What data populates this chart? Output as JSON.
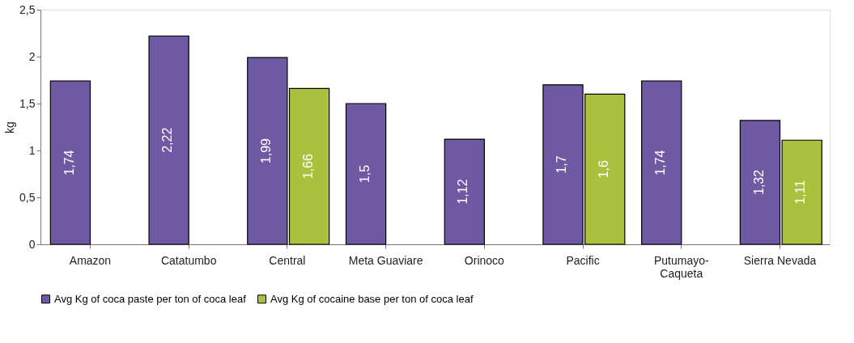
{
  "chart_data": {
    "type": "bar",
    "ylabel": "kg",
    "categories": [
      "Amazon",
      "Catatumbo",
      "Central",
      "Meta Guaviare",
      "Orinoco",
      "Pacific",
      "Putumayo-Caqueta",
      "Sierra Nevada"
    ],
    "series": [
      {
        "name": "Avg Kg of coca paste per ton of coca leaf",
        "color": "#7059a3",
        "values": [
          1.74,
          2.22,
          1.99,
          1.5,
          1.12,
          1.7,
          1.74,
          1.32
        ],
        "value_labels": [
          "1,74",
          "2,22",
          "1,99",
          "1,5",
          "1,12",
          "1,7",
          "1,74",
          "1,32"
        ]
      },
      {
        "name": "Avg Kg of cocaine base per ton of coca leaf",
        "color": "#a9c13d",
        "values": [
          null,
          null,
          1.66,
          null,
          null,
          1.6,
          null,
          1.11
        ],
        "value_labels": [
          null,
          null,
          "1,66",
          null,
          null,
          "1,6",
          null,
          "1,11"
        ]
      }
    ],
    "ylim": [
      0,
      2.5
    ],
    "yticks": [
      0,
      {
        "value": 0.5,
        "label": "0,5"
      },
      1,
      {
        "value": 1.5,
        "label": "1,5"
      },
      2,
      {
        "value": 2.5,
        "label": "2,5"
      }
    ],
    "grid": false,
    "legend": "bottom"
  }
}
